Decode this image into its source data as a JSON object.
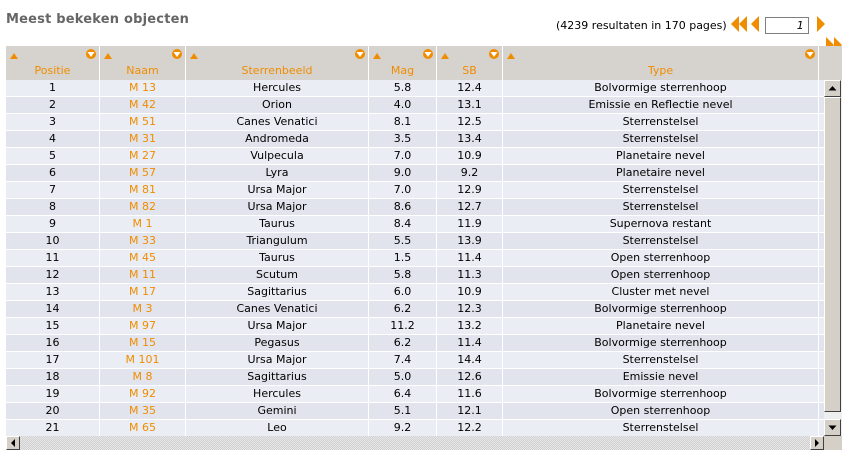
{
  "page": {
    "title": "Meest bekeken objecten"
  },
  "pager": {
    "results_text": "(4239 resultaten in 170 pages)",
    "current_page": "1",
    "accent": "#f08c00"
  },
  "table": {
    "columns": [
      "Positie",
      "Naam",
      "Sterrenbeeld",
      "Mag",
      "SB",
      "Type"
    ],
    "rows": [
      [
        "1",
        "M 13",
        "Hercules",
        "5.8",
        "12.4",
        "Bolvormige sterrenhoop"
      ],
      [
        "2",
        "M 42",
        "Orion",
        "4.0",
        "13.1",
        "Emissie en Reflectie nevel"
      ],
      [
        "3",
        "M 51",
        "Canes Venatici",
        "8.1",
        "12.5",
        "Sterrenstelsel"
      ],
      [
        "4",
        "M 31",
        "Andromeda",
        "3.5",
        "13.4",
        "Sterrenstelsel"
      ],
      [
        "5",
        "M 27",
        "Vulpecula",
        "7.0",
        "10.9",
        "Planetaire nevel"
      ],
      [
        "6",
        "M 57",
        "Lyra",
        "9.0",
        "9.2",
        "Planetaire nevel"
      ],
      [
        "7",
        "M 81",
        "Ursa Major",
        "7.0",
        "12.9",
        "Sterrenstelsel"
      ],
      [
        "8",
        "M 82",
        "Ursa Major",
        "8.6",
        "12.7",
        "Sterrenstelsel"
      ],
      [
        "9",
        "M 1",
        "Taurus",
        "8.4",
        "11.9",
        "Supernova restant"
      ],
      [
        "10",
        "M 33",
        "Triangulum",
        "5.5",
        "13.9",
        "Sterrenstelsel"
      ],
      [
        "11",
        "M 45",
        "Taurus",
        "1.5",
        "11.4",
        "Open sterrenhoop"
      ],
      [
        "12",
        "M 11",
        "Scutum",
        "5.8",
        "11.3",
        "Open sterrenhoop"
      ],
      [
        "13",
        "M 17",
        "Sagittarius",
        "6.0",
        "10.9",
        "Cluster met nevel"
      ],
      [
        "14",
        "M 3",
        "Canes Venatici",
        "6.2",
        "12.3",
        "Bolvormige sterrenhoop"
      ],
      [
        "15",
        "M 97",
        "Ursa Major",
        "11.2",
        "13.2",
        "Planetaire nevel"
      ],
      [
        "16",
        "M 15",
        "Pegasus",
        "6.2",
        "11.4",
        "Bolvormige sterrenhoop"
      ],
      [
        "17",
        "M 101",
        "Ursa Major",
        "7.4",
        "14.4",
        "Sterrenstelsel"
      ],
      [
        "18",
        "M 8",
        "Sagittarius",
        "5.0",
        "12.6",
        "Emissie nevel"
      ],
      [
        "19",
        "M 92",
        "Hercules",
        "6.4",
        "11.6",
        "Bolvormige sterrenhoop"
      ],
      [
        "20",
        "M 35",
        "Gemini",
        "5.1",
        "12.1",
        "Open sterrenhoop"
      ],
      [
        "21",
        "M 65",
        "Leo",
        "9.2",
        "12.2",
        "Sterrenstelsel"
      ]
    ]
  }
}
